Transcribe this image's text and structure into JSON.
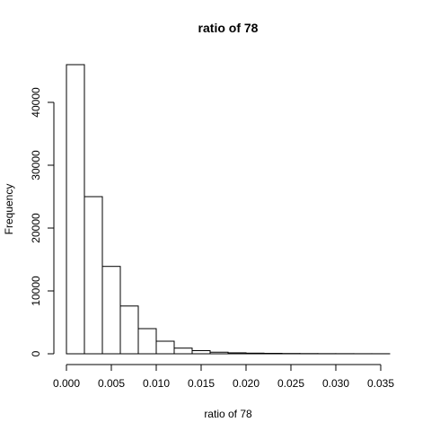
{
  "chart_data": {
    "type": "bar",
    "subtype": "histogram",
    "title": "ratio of 78",
    "xlabel": "ratio of 78",
    "ylabel": "Frequency",
    "bin_width": 0.002,
    "bin_edges": [
      0.0,
      0.002,
      0.004,
      0.006,
      0.008,
      0.01,
      0.012,
      0.014,
      0.016,
      0.018,
      0.02,
      0.022,
      0.024,
      0.026,
      0.028,
      0.03,
      0.032,
      0.034,
      0.036
    ],
    "values": [
      46000,
      25000,
      13900,
      7600,
      4000,
      2000,
      900,
      500,
      250,
      150,
      100,
      70,
      45,
      30,
      20,
      15,
      10,
      8
    ],
    "xlim": [
      0,
      0.036
    ],
    "ylim": [
      0,
      46000
    ],
    "x_ticks": [
      0.0,
      0.005,
      0.01,
      0.015,
      0.02,
      0.025,
      0.03,
      0.035
    ],
    "x_tick_labels": [
      "0.000",
      "0.005",
      "0.010",
      "0.015",
      "0.020",
      "0.025",
      "0.030",
      "0.035"
    ],
    "y_ticks": [
      0,
      10000,
      20000,
      30000,
      40000
    ],
    "y_tick_labels": [
      "0",
      "10000",
      "20000",
      "30000",
      "40000"
    ],
    "grid": false,
    "legend": "none",
    "colors": {
      "bar_fill": "#ffffff",
      "bar_stroke": "#000000"
    }
  }
}
